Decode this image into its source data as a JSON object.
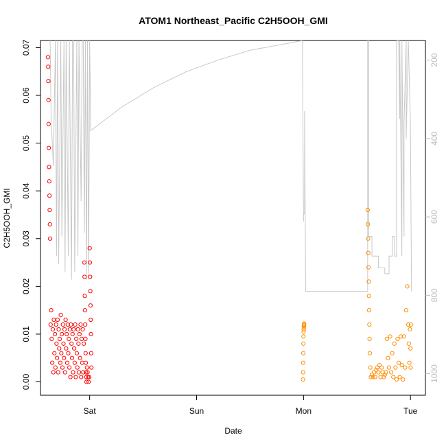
{
  "chart_data": {
    "type": "scatter",
    "title": "ATOM1 Northeast_Pacific C2H5OOH_GMI",
    "xlabel": "Date",
    "ylabel": "C2H5OOH_GMI",
    "x_unit": "days",
    "xlim": [
      -0.46,
      3.14
    ],
    "ylim": [
      -0.0028,
      0.0715
    ],
    "x_ticks": [
      {
        "value": 0,
        "label": "Sat"
      },
      {
        "value": 1,
        "label": "Sun"
      },
      {
        "value": 2,
        "label": "Mon"
      },
      {
        "value": 3,
        "label": "Tue"
      }
    ],
    "y_ticks": [
      0.0,
      0.01,
      0.02,
      0.03,
      0.04,
      0.05,
      0.06,
      0.07
    ],
    "y_tick_labels": [
      "0.00",
      "0.01",
      "0.02",
      "0.03",
      "0.04",
      "0.05",
      "0.06",
      "0.07"
    ],
    "right_axis": {
      "color": "#bdbdbd",
      "reversed": true,
      "lim": [
        1055,
        150
      ],
      "ticks": [
        200,
        400,
        600,
        800,
        1000
      ],
      "tick_labels": [
        "200",
        "400",
        "600",
        "800",
        "1000"
      ]
    },
    "series": [
      {
        "color": "#ff0000",
        "marker": "open-circle",
        "x": [
          -0.39,
          -0.388,
          -0.386,
          -0.385,
          -0.384,
          -0.382,
          -0.38,
          -0.378,
          -0.376,
          -0.374,
          -0.372,
          -0.37,
          -0.365,
          -0.36,
          -0.355,
          -0.35,
          -0.345,
          -0.34,
          -0.335,
          -0.33,
          -0.325,
          -0.32,
          -0.315,
          -0.31,
          -0.305,
          -0.3,
          -0.295,
          -0.29,
          -0.285,
          -0.28,
          -0.275,
          -0.27,
          -0.265,
          -0.26,
          -0.255,
          -0.25,
          -0.245,
          -0.24,
          -0.235,
          -0.23,
          -0.225,
          -0.22,
          -0.215,
          -0.21,
          -0.205,
          -0.2,
          -0.195,
          -0.19,
          -0.185,
          -0.18,
          -0.175,
          -0.17,
          -0.165,
          -0.16,
          -0.155,
          -0.15,
          -0.145,
          -0.14,
          -0.135,
          -0.13,
          -0.125,
          -0.12,
          -0.115,
          -0.11,
          -0.105,
          -0.1,
          -0.095,
          -0.09,
          -0.085,
          -0.08,
          -0.075,
          -0.07,
          -0.065,
          -0.06,
          -0.055,
          -0.05,
          -0.048,
          -0.046,
          -0.044,
          -0.042,
          -0.04,
          -0.038,
          -0.036,
          -0.034,
          -0.032,
          -0.03,
          -0.025,
          -0.02,
          -0.015,
          -0.01,
          -0.005,
          0.0,
          0.002,
          0.004,
          0.006,
          0.008,
          0.01,
          0.012,
          0.014,
          0.016
        ],
        "y": [
          0.068,
          0.066,
          0.063,
          0.059,
          0.054,
          0.049,
          0.045,
          0.042,
          0.039,
          0.036,
          0.033,
          0.03,
          0.012,
          0.015,
          0.009,
          0.004,
          0.011,
          0.002,
          0.013,
          0.006,
          0.01,
          0.003,
          0.012,
          0.008,
          0.005,
          0.013,
          0.002,
          0.011,
          0.007,
          0.009,
          0.004,
          0.014,
          0.006,
          0.01,
          0.003,
          0.012,
          0.008,
          0.005,
          0.011,
          0.002,
          0.013,
          0.007,
          0.01,
          0.004,
          0.012,
          0.006,
          0.009,
          0.003,
          0.011,
          0.001,
          0.012,
          0.008,
          0.005,
          0.01,
          0.002,
          0.011,
          0.007,
          0.004,
          0.012,
          0.001,
          0.009,
          0.006,
          0.003,
          0.011,
          0.008,
          0.002,
          0.01,
          0.005,
          0.012,
          0.001,
          0.009,
          0.004,
          0.011,
          0.002,
          0.008,
          0.025,
          0.022,
          0.018,
          0.015,
          0.012,
          0.009,
          0.006,
          0.004,
          0.002,
          0.001,
          0.0,
          0.003,
          0.002,
          0.001,
          0.0,
          0.001,
          0.028,
          0.025,
          0.022,
          0.019,
          0.016,
          0.013,
          0.01,
          0.006,
          0.003
        ]
      },
      {
        "color": "#ff8c00",
        "marker": "open-circle",
        "x": [
          1.995,
          1.996,
          1.997,
          1.998,
          1.999,
          2.0,
          2.001,
          2.002,
          2.003,
          2.004,
          2.005,
          2.006,
          2.6,
          2.602,
          2.604,
          2.606,
          2.608,
          2.61,
          2.612,
          2.614,
          2.616,
          2.618,
          2.62,
          2.625,
          2.63,
          2.64,
          2.65,
          2.66,
          2.67,
          2.68,
          2.69,
          2.7,
          2.71,
          2.72,
          2.73,
          2.74,
          2.75,
          2.76,
          2.77,
          2.78,
          2.79,
          2.8,
          2.81,
          2.82,
          2.83,
          2.84,
          2.85,
          2.86,
          2.87,
          2.88,
          2.89,
          2.9,
          2.91,
          2.92,
          2.93,
          2.94,
          2.95,
          2.96,
          2.97,
          2.98,
          2.985,
          2.99,
          2.995,
          3.0,
          3.002,
          3.004
        ],
        "y": [
          0.0005,
          0.002,
          0.004,
          0.006,
          0.008,
          0.0095,
          0.0105,
          0.011,
          0.0115,
          0.012,
          0.0118,
          0.0122,
          0.036,
          0.033,
          0.03,
          0.027,
          0.024,
          0.021,
          0.018,
          0.015,
          0.012,
          0.009,
          0.006,
          0.003,
          0.001,
          0.0015,
          0.001,
          0.002,
          0.001,
          0.0025,
          0.003,
          0.002,
          0.0035,
          0.001,
          0.003,
          0.002,
          0.001,
          0.0015,
          0.002,
          0.009,
          0.005,
          0.003,
          0.0095,
          0.002,
          0.006,
          0.001,
          0.008,
          0.003,
          0.0005,
          0.009,
          0.004,
          0.001,
          0.0095,
          0.0035,
          0.0005,
          0.0095,
          0.003,
          0.015,
          0.02,
          0.012,
          0.008,
          0.004,
          0.011,
          0.007,
          0.003,
          0.012
        ]
      },
      {
        "color": "#c8c8c8",
        "marker": "line",
        "axis": "right",
        "x": [
          -0.37,
          -0.36,
          -0.34,
          -0.32,
          -0.31,
          -0.3,
          -0.29,
          -0.27,
          -0.26,
          -0.24,
          -0.23,
          -0.22,
          -0.2,
          -0.19,
          -0.17,
          -0.16,
          -0.15,
          -0.14,
          -0.12,
          -0.11,
          -0.1,
          -0.08,
          -0.07,
          -0.06,
          -0.05,
          -0.04,
          -0.03,
          -0.02,
          -0.01,
          0.0,
          0.01,
          0.3,
          0.6,
          0.9,
          1.2,
          1.5,
          1.8,
          1.99,
          1.99,
          2.0,
          2.0,
          2.01,
          2.01,
          2.02,
          2.02,
          2.1,
          2.3,
          2.5,
          2.6,
          2.6,
          2.61,
          2.61,
          2.64,
          2.64,
          2.7,
          2.7,
          2.76,
          2.76,
          2.8,
          2.8,
          2.83,
          2.83,
          2.85,
          2.85,
          2.87,
          2.87,
          2.89,
          2.9,
          2.9,
          2.92,
          2.92,
          2.94,
          2.94,
          2.96,
          2.96,
          2.98,
          3.0,
          3.0,
          3.01
        ],
        "y": [
          150,
          350,
          470,
          150,
          700,
          150,
          720,
          150,
          650,
          150,
          740,
          150,
          700,
          150,
          760,
          150,
          150,
          740,
          150,
          700,
          150,
          560,
          150,
          150,
          640,
          150,
          760,
          150,
          760,
          150,
          380,
          320,
          270,
          230,
          200,
          175,
          160,
          150,
          150,
          612,
          595,
          590,
          330,
          790,
          790,
          790,
          790,
          790,
          790,
          150,
          150,
          650,
          650,
          700,
          700,
          730,
          730,
          745,
          745,
          700,
          700,
          650,
          650,
          700,
          700,
          150,
          150,
          350,
          150,
          700,
          150,
          650,
          360,
          150,
          400,
          150,
          360,
          380,
          790
        ]
      }
    ]
  }
}
